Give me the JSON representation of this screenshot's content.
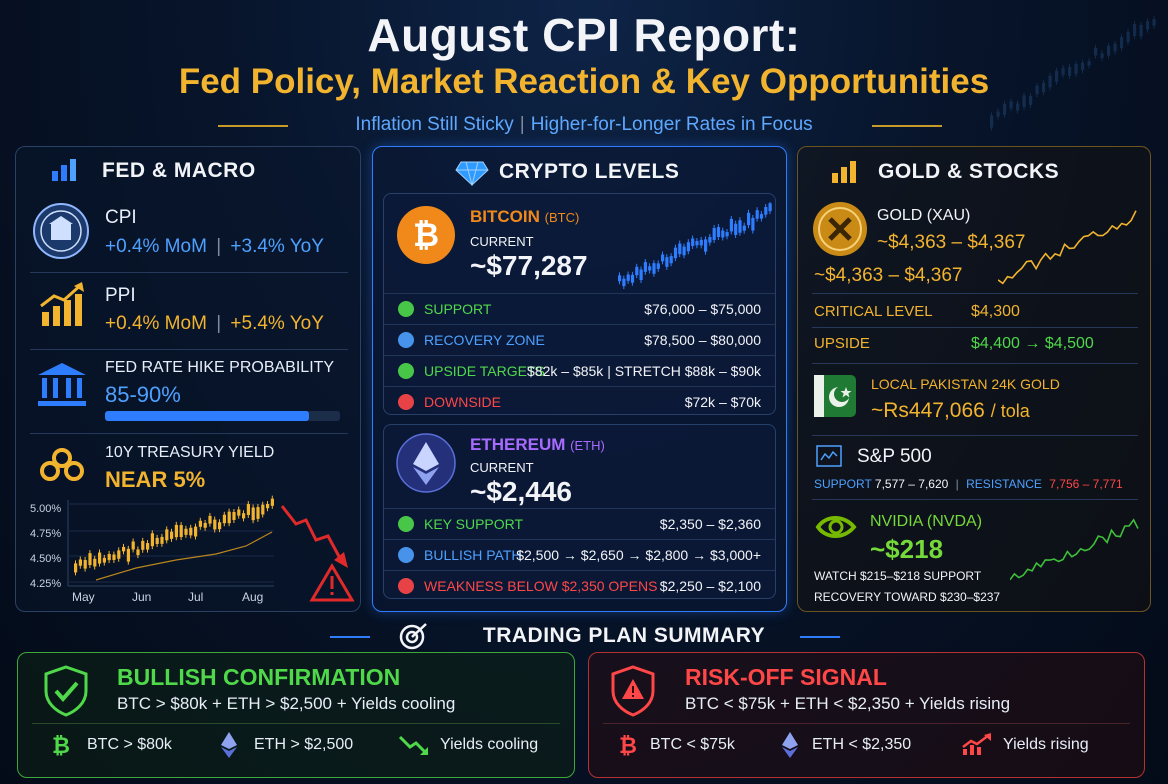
{
  "header": {
    "title": "August CPI Report:",
    "subtitle_main": "Fed Policy, Market Reaction & Key Opportunities",
    "tagline_left": "Inflation Still Sticky",
    "tagline_sep": "|",
    "tagline_right": "Higher-for-Longer Rates in Focus"
  },
  "fed_macro": {
    "title": "FED & MACRO",
    "cpi": {
      "label": "CPI",
      "mom": "+0.4% MoM",
      "sep": "|",
      "yoy": "+3.4% YoY"
    },
    "ppi": {
      "label": "PPI",
      "mom": "+0.4% MoM",
      "sep": "|",
      "yoy": "+5.4% YoY"
    },
    "rate_hike": {
      "label": "FED RATE HIKE PROBABILITY",
      "value": "85-90%",
      "progress": 0.87
    },
    "treasury": {
      "label": "10Y TREASURY YIELD",
      "value": "NEAR 5%"
    },
    "chart_data": {
      "type": "line",
      "yticks": [
        "5.00%",
        "4.75%",
        "4.50%",
        "4.25%"
      ],
      "xticks": [
        "May",
        "Jun",
        "Jul",
        "Aug"
      ],
      "ylim": [
        4.2,
        5.05
      ]
    }
  },
  "crypto": {
    "title": "CRYPTO LEVELS",
    "btc": {
      "name": "BITCOIN",
      "ticker": "(BTC)",
      "current_label": "CURRENT",
      "price": "~$77,287",
      "rows": [
        {
          "label": "SUPPORT",
          "value": "$76,000 – $75,000",
          "color": "#4fd94a"
        },
        {
          "label": "RECOVERY ZONE",
          "value": "$78,500 – $80,000",
          "color": "#4ea1ff"
        },
        {
          "label": "UPSIDE TARGETS",
          "value": "$82k – $85k  |  STRETCH $88k – $90k",
          "color": "#4fd94a"
        },
        {
          "label": "DOWNSIDE",
          "value": "$72k – $70k",
          "color": "#ff4747"
        }
      ]
    },
    "eth": {
      "name": "ETHEREUM",
      "ticker": "(ETH)",
      "current_label": "CURRENT",
      "price": "~$2,446",
      "rows": [
        {
          "label": "KEY SUPPORT",
          "value": "$2,350 – $2,360",
          "color": "#4fd94a"
        },
        {
          "label": "BULLISH PATH",
          "value": "$2,500 → $2,650 → $2,800 → $3,000+",
          "color": "#4ea1ff"
        },
        {
          "label": "WEAKNESS BELOW $2,350 OPENS",
          "value": "$2,250 – $2,100",
          "color": "#ff4747"
        }
      ]
    }
  },
  "gold_stocks": {
    "title": "GOLD & STOCKS",
    "gold": {
      "label": "GOLD (XAU)",
      "range1": "~$4,363 – $4,367",
      "range2": "~$4,363 – $4,367",
      "critical_label": "CRITICAL LEVEL",
      "critical_value": "$4,300",
      "upside_label": "UPSIDE",
      "upside_value": "$4,400 → $4,500"
    },
    "pk_gold": {
      "label": "LOCAL PAKISTAN 24K GOLD",
      "value": "~Rs447,066",
      "unit": "/ tola"
    },
    "sp500": {
      "label": "S&P 500",
      "support_label": "SUPPORT",
      "support_value": "7,577 – 7,620",
      "sep": "|",
      "resistance_label": "RESISTANCE",
      "resistance_value": "7,756 – 7,771"
    },
    "nvda": {
      "label": "NVIDIA (NVDA)",
      "price": "~$218",
      "line1": "WATCH $215–$218 SUPPORT",
      "line2": "RECOVERY TOWARD $230–$237"
    }
  },
  "summary": {
    "title": "TRADING PLAN SUMMARY",
    "bull": {
      "head": "BULLISH CONFIRMATION",
      "desc": "BTC > $80k + ETH > $2,500 + Yields cooling",
      "items": [
        "BTC > $80k",
        "ETH > $2,500",
        "Yields cooling"
      ]
    },
    "risk": {
      "head": "RISK-OFF SIGNAL",
      "desc": "BTC < $75k + ETH < $2,350 + Yields rising",
      "items": [
        "BTC < $75k",
        "ETH < $2,350",
        "Yields rising"
      ]
    }
  },
  "colors": {
    "gold": "#f2b32e",
    "blue": "#4ea1ff",
    "green": "#4fd94a",
    "red": "#ff4747",
    "purple": "#a86bff"
  }
}
